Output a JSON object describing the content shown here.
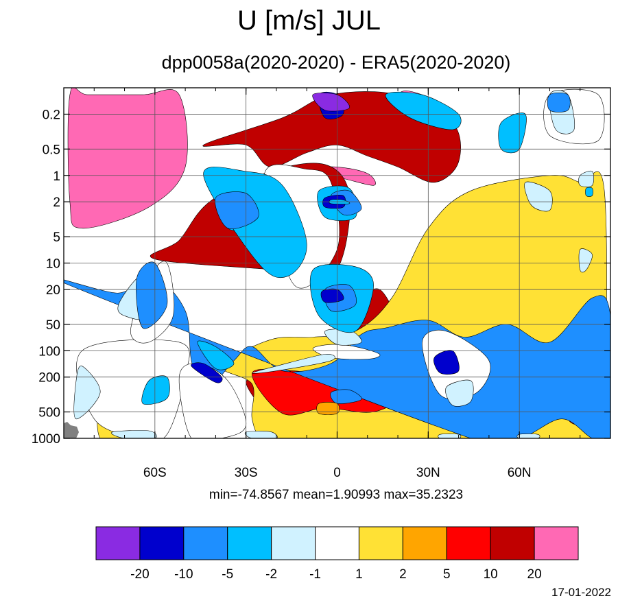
{
  "title": "U [m/s] JUL",
  "subtitle": "dpp0058a(2020-2020) - ERA5(2020-2020)",
  "stats": "min=-74.8567   mean=1.90993   max=35.2323",
  "date": "17-01-2022",
  "chart_data": {
    "type": "heatmap",
    "title": "U [m/s] JUL",
    "subtitle": "dpp0058a(2020-2020) - ERA5(2020-2020)",
    "x_ticks": [
      {
        "value": -60,
        "label": "60S"
      },
      {
        "value": -30,
        "label": "30S"
      },
      {
        "value": 0,
        "label": "0"
      },
      {
        "value": 30,
        "label": "30N"
      },
      {
        "value": 60,
        "label": "60N"
      }
    ],
    "xlim": [
      -90,
      90
    ],
    "y_scale": "log",
    "y_ticks": [
      {
        "value": 0.2,
        "label": "0.2"
      },
      {
        "value": 0.5,
        "label": "0.5"
      },
      {
        "value": 1,
        "label": "1"
      },
      {
        "value": 2,
        "label": "2"
      },
      {
        "value": 5,
        "label": "5"
      },
      {
        "value": 10,
        "label": "10"
      },
      {
        "value": 20,
        "label": "20"
      },
      {
        "value": 50,
        "label": "50"
      },
      {
        "value": 100,
        "label": "100"
      },
      {
        "value": 200,
        "label": "200"
      },
      {
        "value": 500,
        "label": "500"
      },
      {
        "value": 1000,
        "label": "1000"
      }
    ],
    "ylim": [
      1000,
      0.1
    ],
    "grid": true,
    "stats": {
      "min": -74.8567,
      "mean": 1.90993,
      "max": 35.2323
    },
    "colorbar": {
      "levels": [
        -20,
        -10,
        -5,
        -2,
        -1,
        1,
        2,
        5,
        10,
        20
      ],
      "colors": [
        "#8a2be2",
        "#0000cd",
        "#1e8fff",
        "#00bfff",
        "#d0f2ff",
        "#ffffff",
        "#ffe135",
        "#ffa500",
        "#ff0000",
        "#c00000",
        "#ff69b4"
      ]
    },
    "bands": [
      {
        "bin": 10,
        "lat": [
          -88,
          -88,
          -84,
          -62,
          -50,
          -52,
          -64,
          -82
        ],
        "lev": [
          0.12,
          2.0,
          4.0,
          2.3,
          0.8,
          0.12,
          0.12,
          0.12
        ]
      },
      {
        "bin": 10,
        "lat": [
          20,
          28,
          38,
          38,
          29,
          20
        ],
        "lev": [
          0.12,
          0.12,
          0.2,
          0.5,
          0.6,
          0.35
        ]
      },
      {
        "bin": 10,
        "lat": [
          -10,
          0,
          10,
          12,
          0,
          -10
        ],
        "lev": [
          0.85,
          0.8,
          0.95,
          1.3,
          1.05,
          1.0
        ]
      },
      {
        "bin": 9,
        "lat": [
          -44,
          -30,
          -22,
          -10,
          0,
          10,
          20,
          32,
          40,
          38,
          20,
          -2,
          -18
        ],
        "lev": [
          0.45,
          0.45,
          0.8,
          0.55,
          0.45,
          0.6,
          0.8,
          1.2,
          0.7,
          0.25,
          0.12,
          0.12,
          0.22
        ]
      },
      {
        "bin": 9,
        "lat": [
          -60,
          -52,
          -42,
          -22,
          -4,
          4,
          2,
          -4,
          -20
        ],
        "lev": [
          9.0,
          5.5,
          2.0,
          0.9,
          0.75,
          1.6,
          8.0,
          14.0,
          12.0
        ]
      },
      {
        "bin": 9,
        "lat": [
          6,
          14,
          20,
          14,
          6
        ],
        "lev": [
          30.0,
          20.0,
          55.0,
          90.0,
          65.0
        ]
      },
      {
        "bin": 9,
        "lat": [
          -30,
          -24,
          -18,
          -24
        ],
        "lev": [
          230,
          200,
          300,
          440
        ]
      },
      {
        "bin": 9,
        "lat": [
          84,
          88,
          84,
          80
        ],
        "lev": [
          230,
          300,
          500,
          330
        ]
      },
      {
        "bin": 9,
        "lat": [
          -65,
          -62,
          -59,
          -62
        ],
        "lev": [
          260,
          210,
          300,
          420
        ]
      },
      {
        "bin": 6,
        "lat": [
          -38,
          -28,
          -28,
          -24,
          -10,
          8,
          22,
          26,
          40,
          84,
          88,
          88,
          80,
          70,
          44,
          30,
          18,
          6,
          -8,
          -22
        ],
        "lev": [
          150,
          240,
          600,
          1000,
          1000,
          1000,
          1000,
          1000,
          1000,
          1000,
          600,
          1.5,
          1.2,
          1.0,
          1.5,
          4.0,
          25.0,
          60.0,
          70.0,
          75.0
        ]
      },
      {
        "bin": 6,
        "lat": [
          -78,
          -70,
          -58,
          -58,
          -70,
          -78
        ],
        "lev": [
          360,
          180,
          200,
          1000,
          1000,
          1000
        ]
      },
      {
        "bin": 8,
        "lat": [
          -28,
          -14,
          -6,
          2,
          12,
          20,
          24,
          12,
          -4,
          -18
        ],
        "lev": [
          180,
          170,
          190,
          170,
          180,
          240,
          300,
          500,
          450,
          520
        ]
      },
      {
        "bin": 8,
        "lat": [
          24,
          28,
          26,
          20
        ],
        "lev": [
          200,
          150,
          360,
          280
        ]
      },
      {
        "bin": 8,
        "lat": [
          76,
          84,
          90,
          90,
          84,
          76
        ],
        "lev": [
          180,
          140,
          180,
          600,
          700,
          600
        ]
      },
      {
        "bin": 8,
        "lat": [
          -70,
          -64,
          -58,
          -58,
          -64,
          -70
        ],
        "lev": [
          260,
          160,
          220,
          500,
          600,
          560
        ]
      },
      {
        "bin": 2,
        "lat": [
          -88,
          -72,
          -60,
          -50,
          -48,
          -44,
          -34,
          -28,
          -18,
          -2,
          8,
          16,
          30,
          42,
          56,
          70,
          84,
          90,
          90,
          84,
          74,
          60,
          44
        ],
        "lev": [
          18,
          22,
          15,
          35,
          130,
          300,
          130,
          90,
          170,
          140,
          65,
          55,
          45,
          70,
          50,
          80,
          25,
          40,
          1000,
          1000,
          600,
          1000,
          1000
        ]
      },
      {
        "bin": 5,
        "lat": [
          -84,
          -80,
          -64,
          -56,
          -50,
          -52
        ],
        "lev": [
          100,
          600,
          1000,
          900,
          200,
          80
        ]
      },
      {
        "bin": 5,
        "lat": [
          -52,
          -48,
          -38,
          -30,
          -36,
          -46
        ],
        "lev": [
          200,
          1000,
          1000,
          700,
          220,
          140
        ]
      },
      {
        "bin": 5,
        "lat": [
          28,
          36,
          50,
          46,
          34
        ],
        "lev": [
          80,
          60,
          130,
          300,
          320
        ]
      },
      {
        "bin": 5,
        "lat": [
          -62,
          -56,
          -54,
          -62,
          -68
        ],
        "lev": [
          15,
          10,
          40,
          80,
          60
        ]
      },
      {
        "bin": 5,
        "lat": [
          -24,
          -10,
          -2,
          0,
          -14
        ],
        "lev": [
          1.0,
          0.85,
          1.2,
          7.0,
          18.0
        ]
      },
      {
        "bin": 5,
        "lat": [
          -8,
          -2,
          6,
          14,
          10,
          -2
        ],
        "lev": [
          95,
          85,
          90,
          110,
          125,
          120
        ]
      },
      {
        "bin": 5,
        "lat": [
          70,
          86,
          86,
          70
        ],
        "lev": [
          0.12,
          0.12,
          0.4,
          0.35
        ]
      },
      {
        "bin": 4,
        "lat": [
          -86,
          -84,
          -78,
          -86
        ],
        "lev": [
          230,
          150,
          300,
          600
        ]
      },
      {
        "bin": 4,
        "lat": [
          -4,
          4,
          8,
          0
        ],
        "lev": [
          60,
          58,
          80,
          85
        ]
      },
      {
        "bin": 4,
        "lat": [
          36,
          44,
          44,
          38
        ],
        "lev": [
          260,
          220,
          380,
          420
        ]
      },
      {
        "bin": 4,
        "lat": [
          62,
          70,
          70,
          64
        ],
        "lev": [
          1.2,
          1.5,
          2.5,
          2.2
        ]
      },
      {
        "bin": 4,
        "lat": [
          80,
          84,
          84,
          80
        ],
        "lev": [
          1.0,
          0.9,
          1.3,
          1.3
        ]
      },
      {
        "bin": 4,
        "lat": [
          80,
          84,
          82,
          80
        ],
        "lev": [
          7.0,
          8.0,
          12.0,
          12.0
        ]
      },
      {
        "bin": 3,
        "lat": [
          -46,
          -40,
          -34,
          -40
        ],
        "lev": [
          80,
          90,
          140,
          160
        ]
      },
      {
        "bin": 4,
        "lat": [
          -72,
          -66,
          -60,
          -62,
          -70
        ],
        "lev": [
          30,
          15,
          12,
          40,
          40
        ]
      },
      {
        "bin": 3,
        "lat": [
          -62,
          -56,
          -56,
          -64
        ],
        "lev": [
          220,
          200,
          350,
          400
        ]
      },
      {
        "bin": 2,
        "lat": [
          -66,
          -60,
          -56,
          -64
        ],
        "lev": [
          15,
          10,
          30,
          55
        ]
      },
      {
        "bin": 3,
        "lat": [
          -38,
          -30,
          -26,
          -36
        ],
        "lev": [
          1.5,
          1.3,
          3.5,
          4.0
        ]
      },
      {
        "bin": 2,
        "lat": [
          -2,
          4,
          8,
          0
        ],
        "lev": [
          300,
          280,
          360,
          400
        ]
      },
      {
        "bin": 4,
        "lat": [
          -28,
          -20,
          -4,
          -2,
          -20
        ],
        "lev": [
          180,
          150,
          110,
          130,
          170
        ]
      },
      {
        "bin": 3,
        "lat": [
          -44,
          -30,
          -18,
          -10,
          -16,
          -26
        ],
        "lev": [
          1.0,
          0.9,
          1.3,
          6.0,
          14.0,
          10.0
        ]
      },
      {
        "bin": 3,
        "lat": [
          -6,
          4,
          6,
          -4
        ],
        "lev": [
          1.5,
          1.4,
          3.0,
          3.0
        ]
      },
      {
        "bin": 3,
        "lat": [
          -8,
          6,
          12,
          6,
          -6
        ],
        "lev": [
          12,
          11,
          18,
          60,
          40
        ]
      },
      {
        "bin": 3,
        "lat": [
          54,
          62,
          60,
          54
        ],
        "lev": [
          0.25,
          0.2,
          0.5,
          0.5
        ]
      },
      {
        "bin": 3,
        "lat": [
          16,
          28,
          40,
          38,
          24
        ],
        "lev": [
          0.12,
          0.12,
          0.2,
          0.3,
          0.22
        ]
      },
      {
        "bin": 2,
        "lat": [
          -2,
          4,
          8,
          2
        ],
        "lev": [
          1.7,
          1.5,
          2.4,
          2.8
        ]
      },
      {
        "bin": 2,
        "lat": [
          -4,
          4,
          6,
          -2
        ],
        "lev": [
          20,
          18,
          30,
          35
        ]
      },
      {
        "bin": 2,
        "lat": [
          -40,
          -30,
          -26,
          -36
        ],
        "lev": [
          1.8,
          1.6,
          3.0,
          4.0
        ]
      },
      {
        "bin": 1,
        "lat": [
          -48,
          -44,
          -38,
          -40
        ],
        "lev": [
          150,
          140,
          200,
          230
        ]
      },
      {
        "bin": 1,
        "lat": [
          -6,
          0,
          2,
          -4
        ],
        "lev": [
          0.12,
          0.12,
          0.2,
          0.22
        ]
      },
      {
        "bin": 0,
        "lat": [
          -8,
          0,
          4,
          -4
        ],
        "lev": [
          0.12,
          0.12,
          0.17,
          0.18
        ]
      },
      {
        "bin": 1,
        "lat": [
          -4,
          2,
          2,
          -4
        ],
        "lev": [
          1.8,
          1.7,
          2.3,
          2.3
        ]
      },
      {
        "bin": 3,
        "lat": [
          -2,
          2,
          4,
          -2
        ],
        "lev": [
          1.9,
          1.9,
          2.1,
          2.1
        ]
      },
      {
        "bin": 1,
        "lat": [
          -5,
          0,
          2,
          -4
        ],
        "lev": [
          21,
          20,
          26,
          28
        ]
      },
      {
        "bin": 1,
        "lat": [
          32,
          38,
          40,
          34
        ],
        "lev": [
          120,
          100,
          170,
          180
        ]
      },
      {
        "bin": 4,
        "lat": [
          70,
          76,
          78,
          72
        ],
        "lev": [
          0.12,
          0.12,
          0.3,
          0.3
        ]
      },
      {
        "bin": 2,
        "lat": [
          70,
          76,
          76,
          70
        ],
        "lev": [
          0.12,
          0.12,
          0.18,
          0.18
        ]
      },
      {
        "bin": 3,
        "lat": [
          82,
          84,
          84,
          82
        ],
        "lev": [
          1.4,
          1.4,
          1.7,
          1.7
        ]
      },
      {
        "bin": 4,
        "lat": [
          -74,
          -62,
          -60,
          -70
        ],
        "lev": [
          850,
          820,
          1000,
          1000
        ]
      },
      {
        "bin": 4,
        "lat": [
          -30,
          -22,
          -20,
          -28
        ],
        "lev": [
          850,
          840,
          1000,
          1000
        ]
      },
      {
        "bin": 4,
        "lat": [
          34,
          40,
          40,
          34
        ],
        "lev": [
          900,
          900,
          1000,
          1000
        ]
      },
      {
        "bin": 4,
        "lat": [
          60,
          66,
          66,
          60
        ],
        "lev": [
          900,
          900,
          1000,
          1000
        ]
      },
      {
        "bin": 7,
        "lat": [
          -6,
          0,
          0,
          -6
        ],
        "lev": [
          400,
          400,
          520,
          520
        ]
      }
    ]
  }
}
